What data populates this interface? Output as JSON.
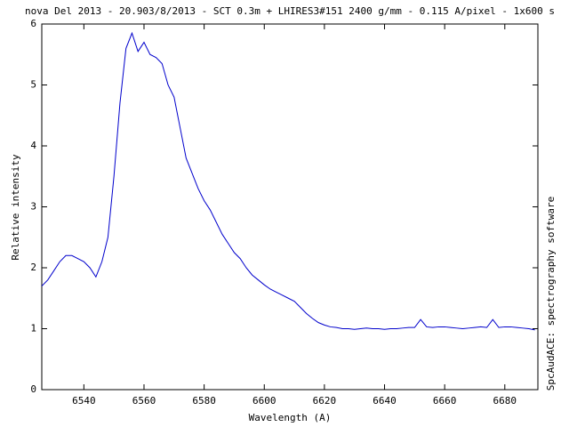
{
  "chart_data": {
    "type": "line",
    "title": "nova Del 2013 - 20.903/8/2013 - SCT 0.3m + LHIRES3#151 2400 g/mm - 0.115 A/pixel - 1x600 s",
    "x_label": "Wavelength (A)",
    "y_label": "Relative intensity",
    "side_label": "SpcAudACE: spectrography software",
    "color": "#0000cc",
    "x": [
      6526,
      6528,
      6530,
      6532,
      6534,
      6536,
      6538,
      6540,
      6542,
      6544,
      6546,
      6548,
      6550,
      6552,
      6554,
      6556,
      6558,
      6560,
      6562,
      6564,
      6566,
      6568,
      6570,
      6572,
      6574,
      6576,
      6578,
      6580,
      6582,
      6584,
      6586,
      6588,
      6590,
      6592,
      6594,
      6596,
      6598,
      6600,
      6602,
      6604,
      6606,
      6608,
      6610,
      6612,
      6614,
      6616,
      6618,
      6620,
      6622,
      6624,
      6626,
      6628,
      6630,
      6632,
      6634,
      6636,
      6638,
      6640,
      6642,
      6644,
      6646,
      6648,
      6650,
      6652,
      6654,
      6656,
      6658,
      6660,
      6662,
      6664,
      6666,
      6668,
      6670,
      6672,
      6674,
      6676,
      6678,
      6680,
      6682,
      6684,
      6686,
      6688,
      6690
    ],
    "values": [
      1.7,
      1.8,
      1.95,
      2.1,
      2.2,
      2.2,
      2.15,
      2.1,
      2.0,
      1.85,
      2.1,
      2.5,
      3.5,
      4.7,
      5.6,
      5.85,
      5.55,
      5.7,
      5.5,
      5.45,
      5.35,
      5.0,
      4.8,
      4.3,
      3.8,
      3.55,
      3.3,
      3.1,
      2.95,
      2.75,
      2.55,
      2.4,
      2.25,
      2.15,
      2.0,
      1.88,
      1.8,
      1.72,
      1.65,
      1.6,
      1.55,
      1.5,
      1.45,
      1.35,
      1.25,
      1.17,
      1.1,
      1.06,
      1.03,
      1.02,
      1.0,
      1.0,
      0.99,
      1.0,
      1.01,
      1.0,
      1.0,
      0.99,
      1.0,
      1.0,
      1.01,
      1.02,
      1.02,
      1.15,
      1.03,
      1.02,
      1.03,
      1.03,
      1.02,
      1.01,
      1.0,
      1.01,
      1.02,
      1.03,
      1.02,
      1.15,
      1.02,
      1.03,
      1.03,
      1.02,
      1.01,
      1.0,
      0.98
    ],
    "xlim": [
      6526,
      6691
    ],
    "ylim": [
      0,
      6
    ],
    "xticks": [
      6540,
      6560,
      6580,
      6600,
      6620,
      6640,
      6660,
      6680
    ],
    "yticks": [
      0,
      1,
      2,
      3,
      4,
      5,
      6
    ],
    "grid": false
  }
}
